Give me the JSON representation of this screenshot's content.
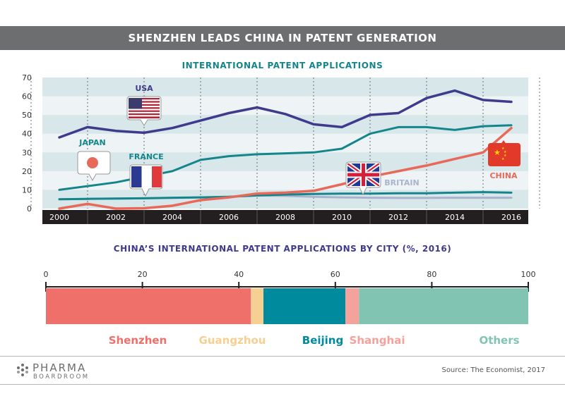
{
  "header": {
    "title": "SHENZHEN LEADS CHINA IN PATENT GENERATION"
  },
  "colors": {
    "usa": "#3e3a8c",
    "japan": "#15858c",
    "china": "#e8695a",
    "france": "#15858c",
    "britain": "#a9b4cc",
    "shenzhen": "#ef6f6a",
    "guangzhou": "#f6cf92",
    "beijing": "#008a9e",
    "shanghai": "#f3a39b",
    "others": "#82c4b2"
  },
  "chart_data": [
    {
      "type": "line",
      "title": "INTERNATIONAL PATENT APPLICATIONS",
      "xlabel": "",
      "ylabel": "",
      "x": [
        2000,
        2001,
        2002,
        2003,
        2004,
        2005,
        2006,
        2007,
        2008,
        2009,
        2010,
        2011,
        2012,
        2013,
        2014,
        2015,
        2016
      ],
      "xticks": [
        "2000",
        "2002",
        "2004",
        "2006",
        "2008",
        "2010",
        "2012",
        "2014",
        "2016"
      ],
      "ylim": [
        0,
        70
      ],
      "yticks": [
        0,
        10,
        20,
        30,
        40,
        50,
        60,
        70
      ],
      "series": [
        {
          "name": "USA",
          "values": [
            38,
            43.5,
            41.5,
            40.5,
            43,
            47,
            51,
            54,
            50.5,
            45,
            43.5,
            50,
            51,
            59,
            63,
            58,
            57
          ]
        },
        {
          "name": "JAPAN",
          "values": [
            10,
            12,
            14,
            17,
            20,
            26,
            28,
            29,
            29.5,
            30,
            32,
            40,
            43.5,
            43.5,
            42,
            44,
            44.5
          ]
        },
        {
          "name": "FRANCE",
          "values": [
            5,
            5.2,
            5.4,
            5.5,
            5.8,
            6,
            6.3,
            7,
            7.5,
            7.8,
            8,
            8,
            8.2,
            8.2,
            8.5,
            8.8,
            8.5
          ]
        },
        {
          "name": "BRITAIN",
          "values": [
            5,
            5.2,
            5.3,
            5.5,
            5.7,
            6,
            6.3,
            7,
            6.8,
            6.3,
            6,
            5.8,
            5.7,
            5.7,
            5.8,
            5.8,
            5.8
          ]
        },
        {
          "name": "CHINA",
          "values": [
            0,
            2.5,
            0,
            0.2,
            1.5,
            4.5,
            6,
            8,
            8.5,
            9.5,
            13,
            17,
            20,
            23,
            26.5,
            30,
            43
          ]
        }
      ],
      "labels": {
        "usa": "USA",
        "japan": "JAPAN",
        "france": "FRANCE",
        "britain": "BRITAIN",
        "china": "CHINA"
      }
    },
    {
      "type": "bar",
      "stacked": true,
      "orientation": "horizontal",
      "title": "CHINA’S INTERNATIONAL PATENT APPLICATIONS BY CITY (%, 2016)",
      "xlim": [
        0,
        100
      ],
      "xticks": [
        "0",
        "20",
        "40",
        "60",
        "80",
        "100"
      ],
      "categories": [
        "Shenzhen",
        "Guangzhou",
        "Beijing",
        "Shanghai",
        "Others"
      ],
      "values": [
        42.5,
        2.6,
        17,
        2.8,
        35.1
      ]
    }
  ],
  "footer": {
    "logo_line1": "PHARMA",
    "logo_line2": "BOARDROOM",
    "source": "Source: The Economist, 2017"
  }
}
